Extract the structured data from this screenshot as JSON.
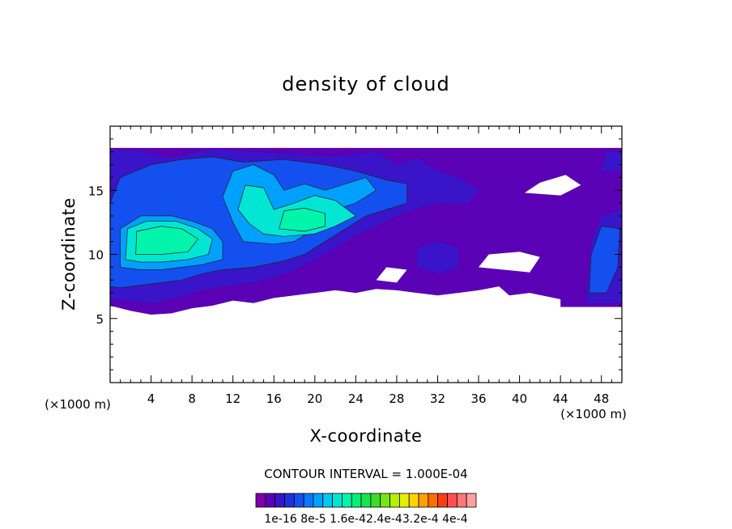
{
  "chart_data": {
    "type": "heatmap",
    "title": "density of cloud",
    "xlabel": "X-coordinate",
    "ylabel": "Z-coordinate",
    "x_unit": "(×1000 m)",
    "xlim": [
      0,
      50
    ],
    "ylim": [
      0,
      20
    ],
    "x_ticks": [
      4,
      8,
      12,
      16,
      20,
      24,
      28,
      32,
      36,
      40,
      44,
      48
    ],
    "y_ticks": [
      5,
      10,
      15
    ],
    "contour_interval": "CONTOUR INTERVAL = 1.000E-04",
    "colorbar": {
      "labels": [
        "1e-16",
        "8e-5",
        "1.6e-4",
        "2.4e-4",
        "3.2e-4",
        "4e-4"
      ],
      "label_text": "1e-16 8e-5 1.6e-42.4e-43.2e-4 4e-4",
      "colors": [
        "#7f00a8",
        "#5a00b5",
        "#3a14c8",
        "#2030dc",
        "#1450f0",
        "#0a78ff",
        "#00a0ff",
        "#00c8f0",
        "#00e6d2",
        "#00f5aa",
        "#00f07a",
        "#14e650",
        "#3cdc28",
        "#78e614",
        "#b4f000",
        "#e6f000",
        "#ffd200",
        "#ffa000",
        "#ff6e00",
        "#ff3c14",
        "#ff5050",
        "#ff7878",
        "#ffa0a0"
      ]
    },
    "field": {
      "regions": [
        {
          "level": 1,
          "points": [
            [
              0,
              6
            ],
            [
              0,
              18.3
            ],
            [
              50,
              18.3
            ],
            [
              50,
              5.9
            ],
            [
              44,
              5.9
            ],
            [
              44,
              6.5
            ],
            [
              41,
              7
            ],
            [
              39,
              6.8
            ],
            [
              38,
              7.5
            ],
            [
              36,
              7.2
            ],
            [
              34,
              7
            ],
            [
              32,
              6.8
            ],
            [
              30,
              7
            ],
            [
              28,
              7.2
            ],
            [
              26,
              7.3
            ],
            [
              24,
              7
            ],
            [
              22,
              7.2
            ],
            [
              20,
              7
            ],
            [
              18,
              6.8
            ],
            [
              16,
              6.6
            ],
            [
              14,
              6.2
            ],
            [
              12,
              6.4
            ],
            [
              10,
              6
            ],
            [
              8,
              5.8
            ],
            [
              6,
              5.4
            ],
            [
              4,
              5.3
            ],
            [
              2,
              5.6
            ]
          ]
        },
        {
          "level": 2,
          "points": [
            [
              0,
              6.5
            ],
            [
              0,
              18.2
            ],
            [
              3,
              18
            ],
            [
              6,
              17.5
            ],
            [
              8,
              17.9
            ],
            [
              10,
              18.2
            ],
            [
              14,
              18
            ],
            [
              18,
              17.8
            ],
            [
              22,
              17.6
            ],
            [
              26,
              18
            ],
            [
              28,
              17
            ],
            [
              30,
              17.5
            ],
            [
              32,
              16.5
            ],
            [
              34,
              16
            ],
            [
              36,
              15
            ],
            [
              35,
              14
            ],
            [
              32,
              14
            ],
            [
              30,
              13.6
            ],
            [
              28,
              13
            ],
            [
              26,
              12.2
            ],
            [
              24,
              11.5
            ],
            [
              22,
              10.5
            ],
            [
              20,
              9.6
            ],
            [
              18,
              8.8
            ],
            [
              16,
              8.2
            ],
            [
              14,
              7.8
            ],
            [
              12,
              7.6
            ],
            [
              10,
              7.4
            ],
            [
              8,
              7
            ],
            [
              6,
              6.5
            ],
            [
              4,
              6.2
            ],
            [
              2,
              6.4
            ]
          ]
        },
        {
          "level": 2,
          "points": [
            [
              30,
              9
            ],
            [
              32,
              8.5
            ],
            [
              34,
              9
            ],
            [
              34,
              10.5
            ],
            [
              32,
              11
            ],
            [
              30,
              10.5
            ]
          ]
        },
        {
          "level": 2,
          "points": [
            [
              46.5,
              6.2
            ],
            [
              50,
              6.2
            ],
            [
              50,
              13.5
            ],
            [
              48,
              13
            ],
            [
              47,
              11
            ],
            [
              46.8,
              9
            ]
          ]
        },
        {
          "level": 2,
          "points": [
            [
              48,
              16.5
            ],
            [
              50,
              16.5
            ],
            [
              50,
              18
            ],
            [
              48.5,
              18
            ]
          ]
        },
        {
          "level": 4,
          "points": [
            [
              0,
              7.5
            ],
            [
              0,
              14
            ],
            [
              1,
              16
            ],
            [
              4,
              17
            ],
            [
              7,
              17.4
            ],
            [
              10,
              17.6
            ],
            [
              13,
              17.2
            ],
            [
              17,
              17.4
            ],
            [
              21,
              17
            ],
            [
              24,
              16.5
            ],
            [
              27,
              15.8
            ],
            [
              29,
              15.5
            ],
            [
              29,
              14
            ],
            [
              27,
              13.5
            ],
            [
              25,
              13
            ],
            [
              23,
              12
            ],
            [
              21,
              11
            ],
            [
              19,
              10
            ],
            [
              17,
              9.5
            ],
            [
              14,
              9
            ],
            [
              11,
              8.8
            ],
            [
              9,
              8.5
            ],
            [
              7,
              8
            ],
            [
              5,
              7.8
            ],
            [
              3,
              7.6
            ],
            [
              1,
              7.4
            ]
          ]
        },
        {
          "level": 4,
          "points": [
            [
              46.8,
              7
            ],
            [
              48.5,
              7
            ],
            [
              49.6,
              9
            ],
            [
              49.8,
              12
            ],
            [
              48,
              12.2
            ],
            [
              47,
              10
            ]
          ]
        },
        {
          "level": 6,
          "points": [
            [
              1,
              9
            ],
            [
              1,
              12
            ],
            [
              3,
              13
            ],
            [
              6,
              13
            ],
            [
              8,
              12.6
            ],
            [
              10,
              12
            ],
            [
              11,
              11
            ],
            [
              11,
              9.6
            ],
            [
              9,
              9.2
            ],
            [
              7,
              9
            ],
            [
              5,
              8.8
            ],
            [
              3,
              8.8
            ]
          ]
        },
        {
          "level": 6,
          "points": [
            [
              11,
              14.5
            ],
            [
              12,
              16.5
            ],
            [
              14,
              17
            ],
            [
              16,
              16.2
            ],
            [
              17,
              15
            ],
            [
              19,
              15.5
            ],
            [
              21,
              15
            ],
            [
              23,
              15.5
            ],
            [
              25,
              16
            ],
            [
              26,
              15
            ],
            [
              24,
              14
            ],
            [
              22,
              13.5
            ],
            [
              20,
              12
            ],
            [
              18,
              11
            ],
            [
              16,
              10.8
            ],
            [
              13,
              11
            ],
            [
              12,
              12.5
            ]
          ]
        },
        {
          "level": 8,
          "points": [
            [
              1.5,
              9.6
            ],
            [
              1.7,
              12
            ],
            [
              3.6,
              12.6
            ],
            [
              6.4,
              12.6
            ],
            [
              8.6,
              12
            ],
            [
              10,
              11.2
            ],
            [
              9.6,
              10
            ],
            [
              7.6,
              9.6
            ],
            [
              5,
              9.4
            ],
            [
              3,
              9.4
            ]
          ]
        },
        {
          "level": 8,
          "points": [
            [
              12.5,
              13.5
            ],
            [
              13.2,
              15.4
            ],
            [
              15,
              15.2
            ],
            [
              16,
              13.5
            ],
            [
              18,
              14
            ],
            [
              20,
              14.6
            ],
            [
              22,
              14.2
            ],
            [
              24,
              13
            ],
            [
              22,
              12.2
            ],
            [
              20,
              11.6
            ],
            [
              17,
              11.4
            ],
            [
              15,
              11.6
            ],
            [
              13.6,
              12.4
            ]
          ]
        },
        {
          "level": 9,
          "points": [
            [
              2.5,
              10
            ],
            [
              2.6,
              11.8
            ],
            [
              5,
              12.2
            ],
            [
              7,
              12
            ],
            [
              8.6,
              11.2
            ],
            [
              7.6,
              10.2
            ],
            [
              5,
              10
            ]
          ]
        },
        {
          "level": 9,
          "points": [
            [
              16.5,
              12
            ],
            [
              17,
              13.4
            ],
            [
              19,
              13.6
            ],
            [
              21,
              13.2
            ],
            [
              21,
              12.2
            ],
            [
              19,
              11.8
            ]
          ]
        },
        {
          "level": 0,
          "points": [
            [
              36,
              9
            ],
            [
              41,
              8.6
            ],
            [
              42,
              9.8
            ],
            [
              40,
              10.2
            ],
            [
              37,
              10
            ]
          ]
        },
        {
          "level": 0,
          "points": [
            [
              40.5,
              14.8
            ],
            [
              44,
              14.6
            ],
            [
              46,
              15.4
            ],
            [
              44.5,
              16.2
            ],
            [
              42,
              15.6
            ]
          ]
        },
        {
          "level": 0,
          "points": [
            [
              26,
              8
            ],
            [
              28,
              7.8
            ],
            [
              29,
              8.8
            ],
            [
              27,
              9
            ]
          ]
        }
      ]
    }
  }
}
